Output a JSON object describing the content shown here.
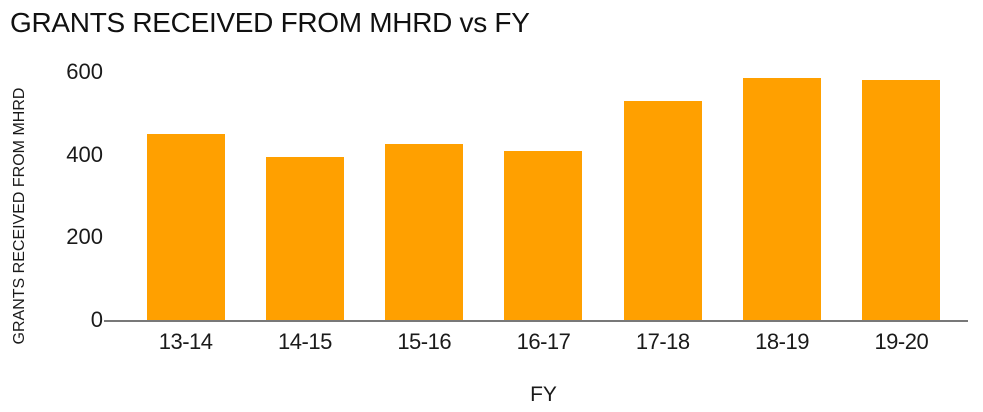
{
  "chart_data": {
    "type": "bar",
    "title": "GRANTS RECEIVED FROM MHRD vs FY",
    "xlabel": "FY",
    "ylabel": "GRANTS RECEIVED FROM MHRD",
    "categories": [
      "13-14",
      "14-15",
      "15-16",
      "16-17",
      "17-18",
      "18-19",
      "19-20"
    ],
    "values": [
      450,
      395,
      425,
      410,
      530,
      585,
      580
    ],
    "ylim": [
      0,
      600
    ],
    "yticks": [
      0,
      200,
      400,
      600
    ],
    "grid": false,
    "legend": false,
    "bar_color": "#FFA000",
    "axis_line_color": "#787878",
    "text_color": "#1a1a1a",
    "background_color": "#ffffff"
  }
}
